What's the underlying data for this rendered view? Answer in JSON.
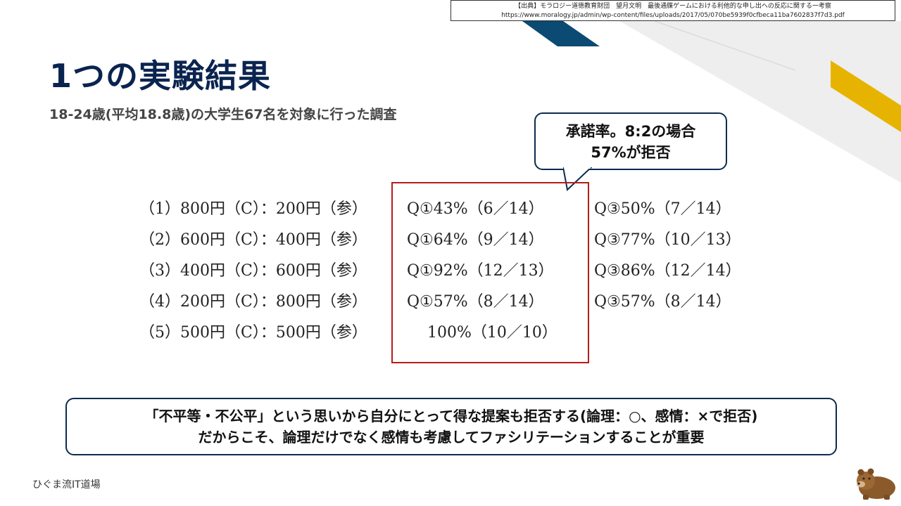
{
  "source": {
    "line1": "【出典】モラロジー道徳教育財団　望月文明　最後通牒ゲームにおける利他的な申し出への反応に関する一考察",
    "line2": "https://www.moralogy.jp/admin/wp-content/files/uploads/2017/05/070be5939f0cfbeca11ba7602837f7d3.pdf"
  },
  "title": "1つの実験結果",
  "subtitle": "18-24歳(平均18.8歳)の大学生67名を対象に行った調査",
  "callout": {
    "line1": "承諾率。8:2の場合",
    "line2": "57%が拒否"
  },
  "results": [
    {
      "condition": "（1）800円（C）：200円（参）",
      "q1": "Q①43%（6／14）",
      "q3": "Q③50%（7／14）"
    },
    {
      "condition": "（2）600円（C）：400円（参）",
      "q1": "Q①64%（9／14）",
      "q3": "Q③77%（10／13）"
    },
    {
      "condition": "（3）400円（C）：600円（参）",
      "q1": "Q①92%（12／13）",
      "q3": "Q③86%（12／14）"
    },
    {
      "condition": "（4）200円（C）：800円（参）",
      "q1": "Q①57%（8／14）",
      "q3": "Q③57%（8／14）"
    },
    {
      "condition": "（5）500円（C）：500円（参）",
      "q1": "　 100%（10／10）",
      "q3": ""
    }
  ],
  "summary": {
    "line1": "「不平等・不公平」という思いから自分にとって得な提案も拒否する(論理：○、感情：×で拒否)",
    "line2": "だからこそ、論理だけでなく感情も考慮してファシリテーションすることが重要"
  },
  "footer": "ひぐま流IT道場",
  "colors": {
    "title": "#0a2450",
    "accent_navy": "#0b4a73",
    "accent_gold": "#e6b400",
    "highlight_border": "#b71c1c"
  },
  "icons": {
    "mascot": "bear-icon"
  }
}
